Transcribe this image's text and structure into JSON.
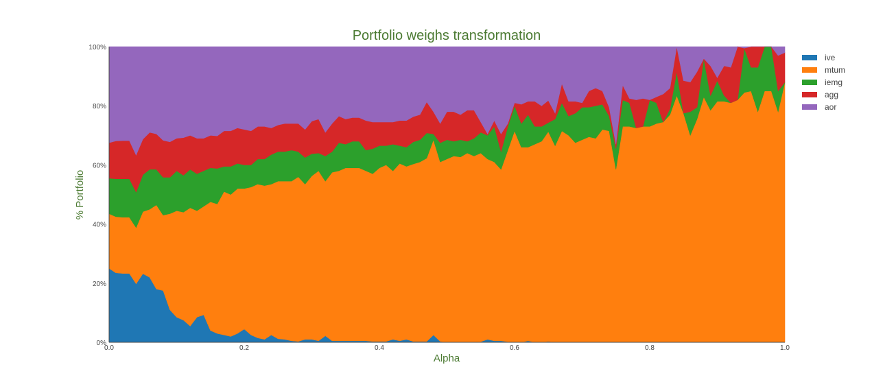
{
  "chart_data": {
    "type": "area",
    "stacked": "percent",
    "title": "Portfolio weighs transformation",
    "xlabel": "Alpha",
    "ylabel": "% Portfolio",
    "xlim": [
      0,
      1
    ],
    "ylim": [
      0,
      100
    ],
    "x_ticks": [
      "0.0",
      "0.2",
      "0.4",
      "0.6",
      "0.8",
      "1.0"
    ],
    "y_ticks": [
      "0%",
      "20%",
      "40%",
      "60%",
      "80%",
      "100%"
    ],
    "grid": false,
    "legend_position": "right",
    "x": [
      0.0,
      0.01,
      0.02,
      0.03,
      0.04,
      0.05,
      0.06,
      0.07,
      0.08,
      0.09,
      0.1,
      0.11,
      0.12,
      0.13,
      0.14,
      0.15,
      0.16,
      0.17,
      0.18,
      0.19,
      0.2,
      0.21,
      0.22,
      0.23,
      0.24,
      0.25,
      0.26,
      0.27,
      0.28,
      0.29,
      0.3,
      0.31,
      0.32,
      0.33,
      0.34,
      0.35,
      0.36,
      0.37,
      0.38,
      0.39,
      0.4,
      0.41,
      0.42,
      0.43,
      0.44,
      0.45,
      0.46,
      0.47,
      0.48,
      0.49,
      0.5,
      0.51,
      0.52,
      0.53,
      0.54,
      0.55,
      0.56,
      0.57,
      0.58,
      0.59,
      0.6,
      0.61,
      0.62,
      0.63,
      0.64,
      0.65,
      0.66,
      0.67,
      0.68,
      0.69,
      0.7,
      0.71,
      0.72,
      0.73,
      0.74,
      0.75,
      0.76,
      0.77,
      0.78,
      0.79,
      0.8,
      0.81,
      0.82,
      0.83,
      0.84,
      0.85,
      0.86,
      0.87,
      0.88,
      0.89,
      0.9,
      0.91,
      0.92,
      0.93,
      0.94,
      0.95,
      0.96,
      0.97,
      0.98,
      0.99,
      1.0
    ],
    "series": [
      {
        "name": "ive",
        "color": "#1f77b4",
        "values": [
          25.0,
          23.5,
          23.3,
          23.3,
          19.8,
          23.2,
          22.0,
          18.0,
          17.5,
          11.0,
          8.5,
          7.5,
          5.5,
          8.5,
          9.3,
          4.0,
          3.0,
          2.5,
          2.0,
          3.0,
          4.5,
          2.5,
          1.5,
          1.0,
          2.5,
          1.2,
          1.0,
          0.5,
          0.3,
          1.0,
          1.0,
          0.5,
          2.2,
          0.5,
          0.5,
          0.5,
          0.5,
          0.5,
          0.5,
          0.3,
          0.3,
          0.3,
          1.0,
          0.5,
          1.0,
          0.3,
          0.3,
          0.3,
          2.5,
          0.3,
          0.0,
          0.0,
          0.0,
          0.0,
          0.0,
          0.2,
          1.0,
          0.5,
          0.5,
          0.2,
          0.0,
          0.0,
          0.5,
          0.0,
          0.0,
          0.3,
          0.0,
          0.0,
          0.0,
          0.0,
          0.0,
          0.0,
          0.0,
          0.0,
          0.0,
          0.0,
          0.0,
          0.0,
          0.0,
          0.0,
          0.0,
          0.0,
          0.0,
          0.0,
          0.0,
          0.0,
          0.0,
          0.0,
          0.0,
          0.0,
          0.0,
          0.0,
          0.0,
          0.0,
          0.0,
          0.0,
          0.0,
          0.0,
          0.0,
          0.0,
          0.0
        ]
      },
      {
        "name": "mtum",
        "color": "#ff7f0e",
        "values": [
          18.5,
          19.0,
          19.0,
          19.0,
          19.0,
          21.0,
          23.0,
          28.5,
          25.5,
          32.5,
          36.0,
          36.5,
          40.0,
          36.0,
          36.7,
          43.5,
          43.8,
          48.5,
          48.0,
          49.0,
          47.5,
          50.0,
          52.0,
          52.0,
          51.0,
          53.3,
          53.5,
          54.0,
          55.7,
          52.5,
          55.3,
          57.5,
          52.3,
          57.0,
          57.5,
          58.5,
          58.5,
          58.5,
          57.5,
          56.7,
          58.7,
          59.7,
          57.0,
          60.0,
          58.5,
          60.0,
          60.7,
          62.0,
          66.0,
          60.7,
          62.0,
          63.0,
          62.7,
          64.0,
          63.0,
          63.8,
          61.0,
          60.5,
          58.0,
          64.8,
          71.5,
          66.0,
          65.5,
          67.0,
          68.0,
          71.0,
          66.5,
          71.5,
          70.0,
          67.5,
          68.5,
          69.5,
          69.0,
          72.0,
          71.5,
          58.5,
          73.0,
          73.0,
          72.5,
          73.0,
          73.0,
          74.0,
          74.5,
          77.0,
          83.5,
          77.5,
          70.0,
          75.5,
          83.0,
          78.5,
          81.5,
          81.5,
          81.0,
          82.0,
          84.5,
          85.0,
          78.0,
          85.0,
          85.0,
          78.0,
          88.0
        ]
      },
      {
        "name": "iemg",
        "color": "#2ca02c",
        "values": [
          12.0,
          12.8,
          13.0,
          13.0,
          12.0,
          12.5,
          13.5,
          12.0,
          12.8,
          12.3,
          13.5,
          12.5,
          13.0,
          12.5,
          12.0,
          11.5,
          12.0,
          8.5,
          9.5,
          8.5,
          8.0,
          7.5,
          8.5,
          9.0,
          10.0,
          10.0,
          10.0,
          10.5,
          8.5,
          9.0,
          7.5,
          6.0,
          8.5,
          7.0,
          9.5,
          8.0,
          9.0,
          9.0,
          7.0,
          8.5,
          7.5,
          6.5,
          9.0,
          6.0,
          6.5,
          7.5,
          7.5,
          8.5,
          2.0,
          6.5,
          6.5,
          5.0,
          5.8,
          4.0,
          6.0,
          7.0,
          8.0,
          12.0,
          6.0,
          8.0,
          8.5,
          8.0,
          11.0,
          6.0,
          5.0,
          3.0,
          9.0,
          9.5,
          6.5,
          10.0,
          11.0,
          10.0,
          11.0,
          8.5,
          5.0,
          7.0,
          9.0,
          8.0,
          0.0,
          0.0,
          9.0,
          7.0,
          0.0,
          2.0,
          8.0,
          0.0,
          8.0,
          4.0,
          13.0,
          5.0,
          7.0,
          2.0,
          0.0,
          0.0,
          15.0,
          8.0,
          15.0,
          15.0,
          15.0,
          7.0,
          0.0
        ]
      },
      {
        "name": "agg",
        "color": "#d62728",
        "values": [
          12.0,
          12.8,
          12.9,
          12.9,
          12.5,
          12.0,
          12.5,
          12.0,
          12.5,
          12.0,
          11.0,
          12.7,
          11.5,
          12.0,
          11.0,
          11.0,
          11.0,
          12.0,
          12.0,
          12.0,
          12.0,
          11.5,
          11.0,
          11.0,
          9.0,
          9.0,
          9.5,
          9.0,
          9.5,
          9.5,
          11.0,
          11.5,
          8.0,
          9.5,
          9.0,
          8.5,
          8.0,
          8.0,
          10.0,
          9.0,
          8.0,
          8.0,
          7.5,
          8.5,
          9.0,
          8.5,
          8.5,
          10.5,
          7.5,
          6.5,
          9.5,
          10.0,
          8.5,
          10.5,
          9.5,
          3.5,
          0.5,
          2.0,
          6.0,
          1.0,
          1.0,
          6.5,
          4.5,
          8.5,
          7.0,
          7.5,
          2.0,
          6.5,
          5.0,
          4.0,
          1.5,
          5.5,
          6.0,
          4.5,
          3.0,
          1.5,
          5.0,
          1.5,
          9.5,
          9.5,
          0.0,
          2.0,
          9.5,
          7.0,
          8.5,
          11.0,
          10.0,
          12.0,
          0.0,
          10.0,
          1.0,
          10.0,
          12.0,
          18.0,
          0.0,
          7.0,
          7.0,
          0.0,
          0.0,
          12.0,
          10.0
        ]
      },
      {
        "name": "aor",
        "color": "#9467bd",
        "values": [
          32.5,
          31.9,
          31.8,
          31.8,
          36.7,
          31.3,
          29.0,
          29.5,
          31.7,
          32.2,
          31.0,
          30.8,
          30.0,
          31.0,
          31.0,
          30.0,
          30.2,
          28.5,
          28.5,
          27.5,
          28.0,
          28.5,
          27.0,
          27.0,
          27.5,
          26.5,
          26.0,
          26.0,
          26.0,
          28.0,
          25.2,
          24.5,
          29.0,
          26.0,
          23.5,
          24.5,
          24.0,
          24.0,
          25.0,
          25.5,
          25.5,
          25.5,
          25.5,
          25.0,
          25.0,
          23.7,
          23.0,
          18.7,
          22.0,
          26.0,
          22.0,
          22.0,
          23.0,
          21.5,
          21.5,
          25.5,
          29.5,
          25.0,
          29.5,
          26.0,
          19.0,
          19.5,
          18.5,
          18.5,
          20.0,
          18.2,
          22.5,
          12.5,
          18.5,
          18.5,
          19.0,
          15.0,
          14.0,
          15.0,
          20.5,
          33.0,
          13.0,
          17.5,
          18.0,
          17.5,
          18.0,
          17.0,
          16.0,
          14.0,
          0.0,
          11.5,
          12.0,
          8.5,
          4.0,
          6.5,
          10.5,
          6.5,
          7.0,
          0.0,
          0.5,
          0.0,
          0.0,
          0.0,
          0.0,
          3.0,
          2.0
        ]
      }
    ]
  }
}
